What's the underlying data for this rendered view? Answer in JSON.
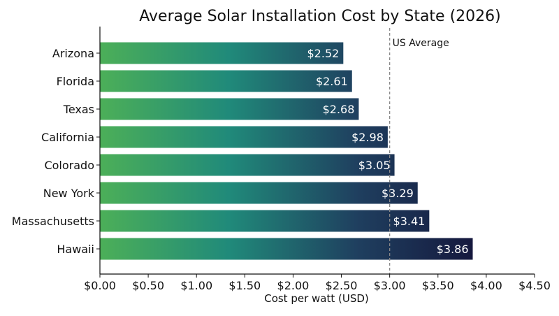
{
  "chart_data": {
    "type": "bar",
    "orientation": "horizontal",
    "title": "Average Solar Installation Cost by State (2026)",
    "xlabel": "Cost per watt (USD)",
    "ylabel": "",
    "xlim": [
      0,
      4.5
    ],
    "x_ticks": [
      0,
      0.5,
      1,
      1.5,
      2,
      2.5,
      3,
      3.5,
      4,
      4.5
    ],
    "x_tick_labels": [
      "$0.00",
      "$0.50",
      "$1.00",
      "$1.50",
      "$2.00",
      "$2.50",
      "$3.00",
      "$3.50",
      "$4.00",
      "$4.50"
    ],
    "categories": [
      "Arizona",
      "Florida",
      "Texas",
      "California",
      "Colorado",
      "New York",
      "Massachusetts",
      "Hawaii"
    ],
    "values": [
      2.52,
      2.61,
      2.68,
      2.98,
      3.05,
      3.29,
      3.41,
      3.86
    ],
    "value_labels": [
      "$2.52",
      "$2.61",
      "$2.68",
      "$2.98",
      "$3.05",
      "$3.29",
      "$3.41",
      "$3.86"
    ],
    "reference_line": {
      "value": 3.0,
      "label": "US Average",
      "style": "dashed",
      "color": "#888888"
    },
    "grid": false,
    "bar_gradient": [
      "#4caf58",
      "#208a7a",
      "#1f3f5f",
      "#14143a"
    ]
  }
}
